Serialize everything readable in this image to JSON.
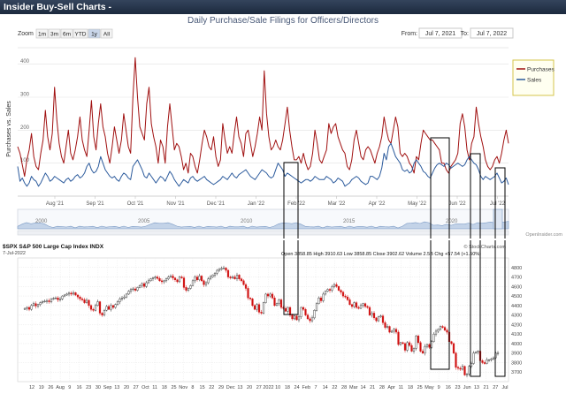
{
  "panel": {
    "title": "Insider Buy-Sell Charts -"
  },
  "top_chart": {
    "zoom_label": "Zoom",
    "zoom_buttons": [
      "1m",
      "3m",
      "6m",
      "YTD",
      "1y",
      "All"
    ],
    "selected_zoom": "1y",
    "from_label": "From:",
    "from_value": "Jul 7, 2021",
    "to_label": "To:",
    "to_value": "Jul 7, 2022",
    "credit": "OpenInsider.com",
    "navigator_years": [
      "2000",
      "2005",
      "2010",
      "2015",
      "2020"
    ],
    "box_labels": [
      "",
      "",
      "",
      ""
    ]
  },
  "bottom_chart": {
    "symbol_line": "$SPX S&P 500 Large Cap Index INDX",
    "date": "7-Jul-2022",
    "watermark": "© StockCharts.com",
    "ohlc_text": "Open 3858.85  High 3910.63  Low 3858.85  Close 3902.62  Volume 2.5B  Chg +57.54 (+1.50%)"
  },
  "chart_data": [
    {
      "type": "line",
      "title": "Daily Purchase/Sale Filings for Officers/Directors",
      "ylabel": "Purchases vs. Sales",
      "ylim": [
        0,
        450
      ],
      "yticks": [
        "100",
        "200",
        "300",
        "400"
      ],
      "x_tick_labels": [
        "Aug '21",
        "Sep '21",
        "Oct '21",
        "Nov '21",
        "Dec '21",
        "Jan '22",
        "Feb '22",
        "Mar '22",
        "Apr '22",
        "May '22",
        "Jun '22",
        "Jul '22"
      ],
      "legend": [
        "Purchases",
        "Sales"
      ],
      "legend_position": "right",
      "series": [
        {
          "name": "Purchases",
          "color": "#a01010",
          "values": [
            150,
            130,
            95,
            60,
            110,
            140,
            190,
            120,
            90,
            80,
            130,
            170,
            260,
            180,
            140,
            190,
            330,
            230,
            160,
            120,
            100,
            150,
            200,
            130,
            110,
            140,
            180,
            240,
            170,
            140,
            120,
            200,
            290,
            180,
            140,
            220,
            280,
            210,
            180,
            130,
            100,
            150,
            210,
            170,
            130,
            170,
            250,
            200,
            150,
            130,
            300,
            420,
            300,
            210,
            190,
            170,
            280,
            330,
            220,
            180,
            150,
            100,
            170,
            150,
            100,
            210,
            280,
            210,
            140,
            160,
            150,
            120,
            80,
            100,
            70,
            130,
            120,
            90,
            70,
            110,
            160,
            200,
            180,
            150,
            140,
            180,
            120,
            90,
            110,
            220,
            170,
            130,
            150,
            130,
            190,
            240,
            180,
            160,
            120,
            190,
            200,
            160,
            120,
            150,
            190,
            240,
            200,
            380,
            250,
            180,
            140,
            150,
            170,
            150,
            140,
            170,
            220,
            270,
            200,
            150,
            110,
            110,
            120,
            100,
            130,
            100,
            80,
            90,
            130,
            200,
            160,
            110,
            100,
            120,
            140,
            220,
            190,
            210,
            220,
            180,
            160,
            140,
            130,
            90,
            80,
            110,
            170,
            200,
            160,
            120,
            110,
            140,
            150,
            140,
            120,
            100,
            130,
            150,
            180,
            240,
            200,
            170,
            160,
            200,
            240,
            210,
            130,
            120,
            130,
            120,
            100,
            90,
            70,
            120,
            110,
            160,
            200,
            190,
            180,
            170,
            170,
            160,
            150,
            140,
            100,
            100,
            80,
            70,
            90,
            100,
            110,
            130,
            220,
            250,
            210,
            140,
            110,
            160,
            180,
            270,
            220,
            180,
            150,
            110,
            90,
            80,
            90,
            110,
            120,
            100,
            130,
            170,
            200,
            160
          ]
        },
        {
          "name": "Sales",
          "color": "#2b5a9c",
          "values": [
            90,
            45,
            55,
            40,
            30,
            40,
            60,
            50,
            45,
            30,
            40,
            55,
            70,
            60,
            45,
            50,
            60,
            55,
            50,
            45,
            40,
            50,
            55,
            45,
            50,
            60,
            65,
            55,
            60,
            70,
            90,
            100,
            80,
            70,
            75,
            90,
            120,
            100,
            80,
            70,
            60,
            55,
            60,
            50,
            45,
            60,
            70,
            65,
            55,
            50,
            90,
            100,
            110,
            95,
            80,
            60,
            55,
            70,
            60,
            50,
            40,
            50,
            60,
            55,
            45,
            60,
            75,
            65,
            50,
            40,
            30,
            40,
            50,
            45,
            40,
            55,
            60,
            50,
            45,
            50,
            55,
            60,
            50,
            45,
            40,
            35,
            40,
            45,
            50,
            60,
            55,
            50,
            60,
            70,
            60,
            55,
            65,
            70,
            75,
            80,
            70,
            60,
            55,
            50,
            60,
            70,
            80,
            75,
            70,
            60,
            55,
            60,
            80,
            100,
            90,
            80,
            60,
            70,
            65,
            60,
            55,
            50,
            45,
            40,
            45,
            50,
            50,
            45,
            50,
            60,
            55,
            50,
            50,
            50,
            60,
            55,
            50,
            40,
            45,
            55,
            50,
            45,
            30,
            35,
            40,
            50,
            55,
            60,
            55,
            45,
            40,
            35,
            40,
            60,
            60,
            55,
            50,
            60,
            85,
            130,
            110,
            150,
            160,
            140,
            120,
            110,
            100,
            80,
            75,
            80,
            70,
            75,
            100,
            110,
            100,
            90,
            75,
            70,
            60,
            55,
            70,
            85,
            95,
            100,
            95,
            90,
            100,
            95,
            85,
            90,
            95,
            100,
            95,
            90,
            95,
            110,
            120,
            110,
            100,
            95,
            80,
            60,
            50,
            60,
            55,
            50,
            55,
            60,
            70,
            55,
            40,
            45,
            55,
            35
          ]
        }
      ]
    },
    {
      "type": "candlestick",
      "title": "$SPX S&P 500 Large Cap Index",
      "ylim": [
        3600,
        4900
      ],
      "yticks": [
        "3700",
        "3800",
        "3900",
        "4000",
        "4100",
        "4200",
        "4300",
        "4400",
        "4500",
        "4600",
        "4700",
        "4800"
      ],
      "x_tick_labels": [
        "12",
        "19",
        "26",
        "Aug",
        "9",
        "16",
        "23",
        "30",
        "Sep",
        "13",
        "20",
        "27",
        "Oct",
        "11",
        "18",
        "25",
        "Nov",
        "8",
        "15",
        "22",
        "29",
        "Dec",
        "13",
        "20",
        "27",
        "2022",
        "10",
        "18",
        "24",
        "Feb",
        "7",
        "14",
        "22",
        "28",
        "Mar",
        "14",
        "21",
        "28",
        "Apr",
        "11",
        "18",
        "25",
        "May",
        "9",
        "16",
        "23",
        "Jun",
        "13",
        "21",
        "27",
        "Jul"
      ],
      "series": [
        {
          "name": "Close",
          "values": [
            4370,
            4380,
            4360,
            4400,
            4420,
            4395,
            4410,
            4430,
            4440,
            4445,
            4450,
            4440,
            4470,
            4475,
            4480,
            4460,
            4470,
            4500,
            4510,
            4520,
            4530,
            4520,
            4535,
            4510,
            4490,
            4470,
            4460,
            4430,
            4455,
            4400,
            4360,
            4350,
            4400,
            4440,
            4320,
            4300,
            4350,
            4390,
            4360,
            4400,
            4380,
            4410,
            4440,
            4470,
            4480,
            4490,
            4520,
            4550,
            4570,
            4575,
            4560,
            4590,
            4610,
            4630,
            4600,
            4640,
            4660,
            4680,
            4690,
            4700,
            4685,
            4660,
            4650,
            4660,
            4680,
            4700,
            4710,
            4690,
            4670,
            4650,
            4700,
            4690,
            4590,
            4560,
            4580,
            4610,
            4660,
            4700,
            4670,
            4710,
            4660,
            4620,
            4640,
            4680,
            4700,
            4720,
            4740,
            4770,
            4780,
            4790,
            4795,
            4770,
            4700,
            4690,
            4700,
            4680,
            4720,
            4680,
            4660,
            4620,
            4580,
            4480,
            4470,
            4400,
            4360,
            4410,
            4330,
            4320,
            4430,
            4520,
            4500,
            4520,
            4480,
            4400,
            4420,
            4460,
            4380,
            4370,
            4340,
            4380,
            4300,
            4260,
            4290,
            4250,
            4280,
            4380,
            4360,
            4300,
            4260,
            4240,
            4270,
            4350,
            4420,
            4480,
            4450,
            4520,
            4550,
            4570,
            4560,
            4600,
            4620,
            4600,
            4560,
            4540,
            4500,
            4490,
            4460,
            4410,
            4390,
            4430,
            4380,
            4370,
            4400,
            4420,
            4390,
            4380,
            4300,
            4320,
            4270,
            4240,
            4280,
            4290,
            4220,
            4170,
            4180,
            4120,
            4130,
            4150,
            4120,
            3990,
            4010,
            4000,
            3930,
            4010,
            3980,
            3920,
            3950,
            4080,
            4010,
            3920,
            3900,
            3970,
            3990,
            3960,
            4020,
            4100,
            4130,
            4150,
            4180,
            4170,
            4140,
            4120,
            4020,
            4000,
            3900,
            3750,
            3740,
            3730,
            3760,
            3670,
            3680,
            3760,
            3790,
            3900,
            3910,
            3920,
            3820,
            3800,
            3790,
            3830,
            3830,
            3840,
            3850,
            3900,
            3902
          ]
        }
      ]
    }
  ]
}
